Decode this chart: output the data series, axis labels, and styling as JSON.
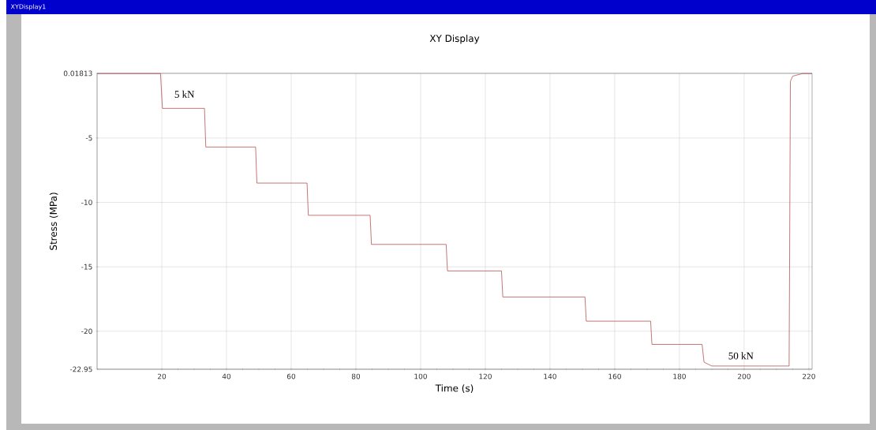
{
  "chart_data": {
    "type": "line",
    "title": "XY Display",
    "xlabel": "Time (s)",
    "ylabel": "Stress (MPa)",
    "x": [
      0,
      19.6,
      20.2,
      33.2,
      33.6,
      49.0,
      49.4,
      64.9,
      65.3,
      84.4,
      84.8,
      107.9,
      108.3,
      125.0,
      125.4,
      150.8,
      151.2,
      171.1,
      171.5,
      187.0,
      187.6,
      190.0,
      213.9,
      214.3,
      215.0,
      218.0,
      221.0
    ],
    "values": [
      0,
      0,
      -2.7,
      -2.7,
      -5.7,
      -5.7,
      -8.5,
      -8.5,
      -11.0,
      -11.0,
      -13.26,
      -13.26,
      -15.32,
      -15.32,
      -17.34,
      -17.34,
      -19.22,
      -19.22,
      -21.02,
      -21.02,
      -22.4,
      -22.7,
      -22.7,
      -0.6,
      -0.2,
      0,
      0
    ],
    "color": "#b03a3a",
    "xlim": [
      0,
      221
    ],
    "xticks": [
      20,
      40,
      60,
      80,
      100,
      120,
      140,
      160,
      180,
      200,
      220
    ],
    "ylim": [
      -22.95,
      0.01813
    ],
    "yticks": [
      -22.95,
      -20,
      -15,
      -10,
      -5,
      0.01813
    ],
    "grid": true,
    "marker": "none",
    "line_style": "solid",
    "annotations": [
      "XYDisplay1",
      {
        "text": "5 kN",
        "x": 27,
        "y": -1.6
      },
      {
        "text": "50 kN",
        "x": 199,
        "y": -21.9
      }
    ]
  }
}
